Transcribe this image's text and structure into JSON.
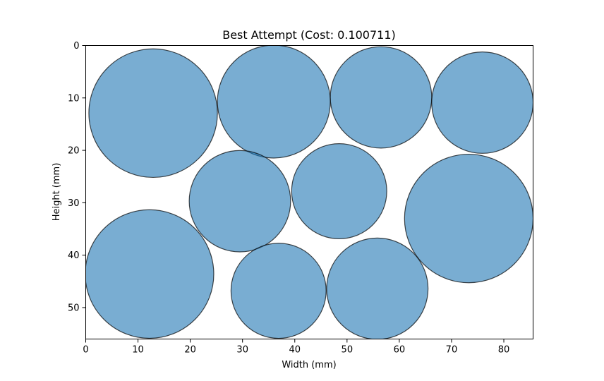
{
  "chart_data": {
    "type": "scatter",
    "title": "Best Attempt (Cost: 0.100711)",
    "xlabel": "Width (mm)",
    "ylabel": "Height (mm)",
    "xlim": [
      0,
      85.6
    ],
    "ylim": [
      0,
      56
    ],
    "y_inverted": true,
    "grid": false,
    "legend": "none",
    "xticks": [
      0,
      10,
      20,
      30,
      40,
      50,
      60,
      70,
      80
    ],
    "yticks": [
      0,
      10,
      20,
      30,
      40,
      50
    ],
    "circle_fill": "#1f77b4",
    "circle_fill_opacity": 0.6,
    "circle_edge": "#000000",
    "circles": [
      {
        "cx": 12.9,
        "cy": 12.9,
        "r": 12.3
      },
      {
        "cx": 36.0,
        "cy": 10.7,
        "r": 10.8
      },
      {
        "cx": 56.5,
        "cy": 9.9,
        "r": 9.7
      },
      {
        "cx": 75.9,
        "cy": 10.9,
        "r": 9.7
      },
      {
        "cx": 29.5,
        "cy": 29.7,
        "r": 9.7
      },
      {
        "cx": 48.5,
        "cy": 27.8,
        "r": 9.1
      },
      {
        "cx": 73.3,
        "cy": 33.0,
        "r": 12.3
      },
      {
        "cx": 12.2,
        "cy": 43.6,
        "r": 12.3
      },
      {
        "cx": 36.9,
        "cy": 46.8,
        "r": 9.1
      },
      {
        "cx": 55.8,
        "cy": 46.4,
        "r": 9.7
      }
    ]
  }
}
